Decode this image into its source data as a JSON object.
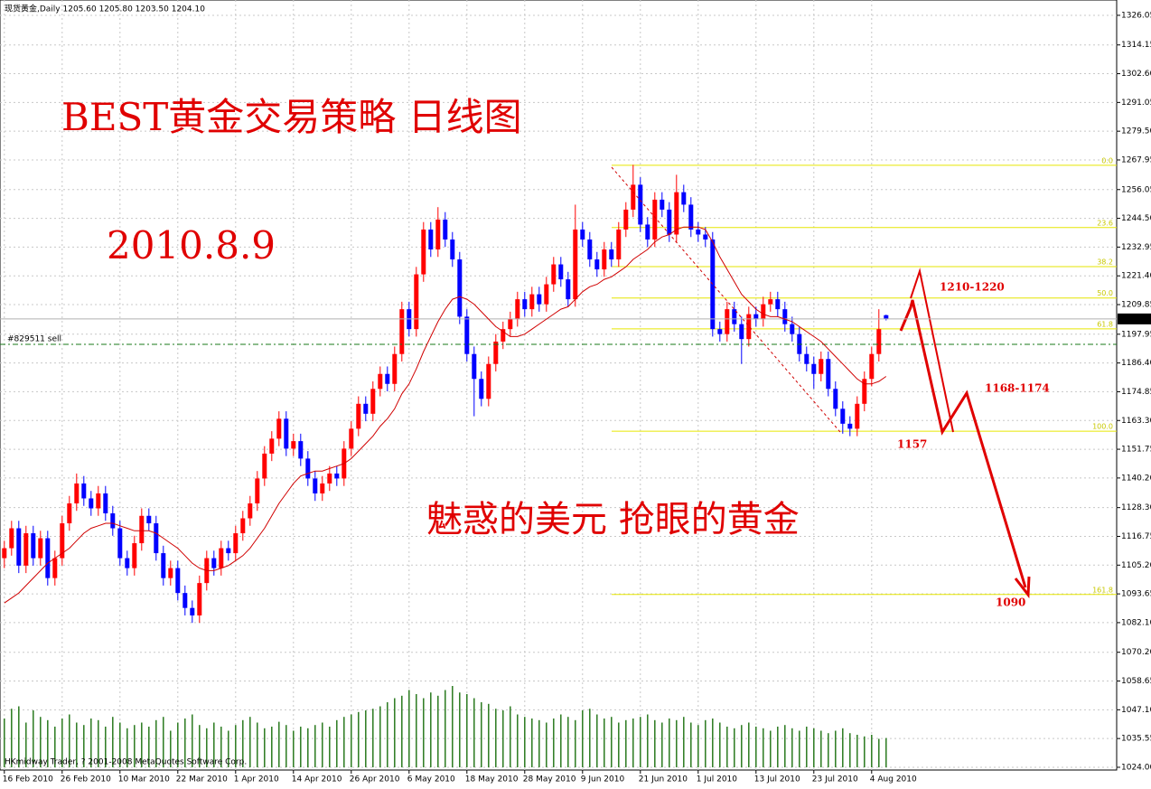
{
  "chart_data": {
    "type": "candlestick",
    "header": "现货黄金,Daily  1205.60 1205.80 1203.50 1204.10",
    "title": "BEST黄金交易策略  日线图",
    "date_note": "2010.8.9",
    "subtitle": "魅惑的美元 抢眼的黄金",
    "footer": "HKmidway Trader, ? 2001-2008 MetaQuotes Software Corp.",
    "target_labels": [
      "1210-1220",
      "1168-1174",
      "1157",
      "1090"
    ],
    "up_color": "#ff0000",
    "down_color": "#0000ff",
    "ma_color": "#d00000",
    "volume_color": "#2a7a1e",
    "fib_color": "#e6e600",
    "grid": true,
    "xlim": [
      -0.6,
      153.9
    ],
    "ylim": [
      1022.9,
      1332.2
    ],
    "xticks": [
      {
        "value": 0,
        "label": "16 Feb 2010"
      },
      {
        "value": 8,
        "label": "26 Feb 2010"
      },
      {
        "value": 16,
        "label": "10 Mar 2010"
      },
      {
        "value": 24,
        "label": "22 Mar 2010"
      },
      {
        "value": 32,
        "label": "1 Apr 2010"
      },
      {
        "value": 40,
        "label": "14 Apr 2010"
      },
      {
        "value": 48,
        "label": "26 Apr 2010"
      },
      {
        "value": 56,
        "label": "6 May 2010"
      },
      {
        "value": 64,
        "label": "18 May 2010"
      },
      {
        "value": 72,
        "label": "28 May 2010"
      },
      {
        "value": 80,
        "label": "9 Jun 2010"
      },
      {
        "value": 88,
        "label": "21 Jun 2010"
      },
      {
        "value": 96,
        "label": "1 Jul 2010"
      },
      {
        "value": 104,
        "label": "13 Jul 2010"
      },
      {
        "value": 112,
        "label": "23 Jul 2010"
      },
      {
        "value": 120,
        "label": "4 Aug 2010"
      }
    ],
    "yticks": [
      {
        "value": 1326.05,
        "label": "1326.05"
      },
      {
        "value": 1314.15,
        "label": "1314.15"
      },
      {
        "value": 1302.6,
        "label": "1302.60"
      },
      {
        "value": 1291.05,
        "label": "1291.05"
      },
      {
        "value": 1279.5,
        "label": "1279.50"
      },
      {
        "value": 1267.95,
        "label": "1267.95"
      },
      {
        "value": 1256.05,
        "label": "1256.05"
      },
      {
        "value": 1244.5,
        "label": "1244.50"
      },
      {
        "value": 1232.95,
        "label": "1232.95"
      },
      {
        "value": 1221.4,
        "label": "1221.40"
      },
      {
        "value": 1209.85,
        "label": "1209.85"
      },
      {
        "value": 1197.95,
        "label": "1197.95"
      },
      {
        "value": 1186.4,
        "label": "1186.40"
      },
      {
        "value": 1174.85,
        "label": "1174.85"
      },
      {
        "value": 1163.3,
        "label": "1163.30"
      },
      {
        "value": 1151.75,
        "label": "1151.75"
      },
      {
        "value": 1140.2,
        "label": "1140.20"
      },
      {
        "value": 1128.3,
        "label": "1128.30"
      },
      {
        "value": 1116.75,
        "label": "1116.75"
      },
      {
        "value": 1105.2,
        "label": "1105.20"
      },
      {
        "value": 1093.65,
        "label": "1093.65"
      },
      {
        "value": 1082.1,
        "label": "1082.10"
      },
      {
        "value": 1070.2,
        "label": "1070.20"
      },
      {
        "value": 1058.65,
        "label": "1058.65"
      },
      {
        "value": 1047.1,
        "label": "1047.10"
      },
      {
        "value": 1035.55,
        "label": "1035.55"
      },
      {
        "value": 1024,
        "label": "1024.00"
      }
    ],
    "last_price": {
      "value": 1204.1,
      "label": "1204.10"
    },
    "order_line": {
      "value": 1193.9,
      "label": "#829511 sell"
    },
    "fib_levels": [
      {
        "value": 1265.8,
        "label": "0.0"
      },
      {
        "value": 1240.8,
        "label": "23.6"
      },
      {
        "value": 1225.1,
        "label": "38.2"
      },
      {
        "value": 1212.5,
        "label": "50.0"
      },
      {
        "value": 1200.1,
        "label": "61.8"
      },
      {
        "value": 1159.0,
        "label": "100.0"
      },
      {
        "value": 1093.4,
        "label": "161.8"
      }
    ],
    "candles": [
      [
        1108,
        1115,
        1104,
        1112
      ],
      [
        1112,
        1123,
        1109,
        1120
      ],
      [
        1120,
        1123,
        1102,
        1105
      ],
      [
        1105,
        1121,
        1102,
        1118
      ],
      [
        1118,
        1121,
        1105,
        1108
      ],
      [
        1108,
        1119,
        1105,
        1116
      ],
      [
        1116,
        1119,
        1097,
        1100
      ],
      [
        1100,
        1111,
        1097,
        1108
      ],
      [
        1108,
        1125,
        1105,
        1122
      ],
      [
        1122,
        1133,
        1119,
        1130
      ],
      [
        1130,
        1142,
        1127,
        1138
      ],
      [
        1138,
        1141,
        1129,
        1132
      ],
      [
        1132,
        1135,
        1125,
        1128
      ],
      [
        1128,
        1137,
        1125,
        1134
      ],
      [
        1134,
        1137,
        1123,
        1126
      ],
      [
        1126,
        1129,
        1117,
        1120
      ],
      [
        1120,
        1123,
        1105,
        1108
      ],
      [
        1108,
        1111,
        1101,
        1104
      ],
      [
        1104,
        1117,
        1101,
        1114
      ],
      [
        1114,
        1128,
        1111,
        1125
      ],
      [
        1125,
        1128,
        1119,
        1122
      ],
      [
        1122,
        1125,
        1107,
        1110
      ],
      [
        1110,
        1113,
        1097,
        1100
      ],
      [
        1100,
        1107,
        1097,
        1104
      ],
      [
        1104,
        1107,
        1091,
        1094
      ],
      [
        1094,
        1097,
        1085,
        1088
      ],
      [
        1088,
        1091,
        1082,
        1085
      ],
      [
        1085,
        1101,
        1082,
        1098
      ],
      [
        1098,
        1111,
        1095,
        1108
      ],
      [
        1108,
        1111,
        1101,
        1104
      ],
      [
        1104,
        1115,
        1101,
        1112
      ],
      [
        1112,
        1115,
        1107,
        1110
      ],
      [
        1110,
        1121,
        1107,
        1118
      ],
      [
        1118,
        1127,
        1115,
        1124
      ],
      [
        1124,
        1133,
        1121,
        1130
      ],
      [
        1130,
        1143,
        1127,
        1140
      ],
      [
        1140,
        1153,
        1137,
        1150
      ],
      [
        1150,
        1159,
        1147,
        1156
      ],
      [
        1156,
        1167,
        1153,
        1164
      ],
      [
        1164,
        1167,
        1149,
        1152
      ],
      [
        1152,
        1158,
        1149,
        1155
      ],
      [
        1155,
        1158,
        1145,
        1148
      ],
      [
        1148,
        1151,
        1137,
        1140
      ],
      [
        1140,
        1143,
        1131,
        1134
      ],
      [
        1134,
        1141,
        1131,
        1138
      ],
      [
        1138,
        1145,
        1135,
        1142
      ],
      [
        1142,
        1145,
        1137,
        1140
      ],
      [
        1140,
        1155,
        1137,
        1152
      ],
      [
        1152,
        1163,
        1149,
        1160
      ],
      [
        1160,
        1173,
        1157,
        1170
      ],
      [
        1170,
        1173,
        1163,
        1166
      ],
      [
        1166,
        1179,
        1163,
        1176
      ],
      [
        1176,
        1185,
        1173,
        1182
      ],
      [
        1182,
        1185,
        1175,
        1178
      ],
      [
        1178,
        1193,
        1175,
        1190
      ],
      [
        1190,
        1211,
        1187,
        1208
      ],
      [
        1208,
        1211,
        1197,
        1200
      ],
      [
        1200,
        1225,
        1197,
        1222
      ],
      [
        1222,
        1243,
        1219,
        1240
      ],
      [
        1240,
        1243,
        1229,
        1232
      ],
      [
        1232,
        1249,
        1229,
        1244
      ],
      [
        1244,
        1247,
        1233,
        1236
      ],
      [
        1236,
        1239,
        1225,
        1228
      ],
      [
        1228,
        1231,
        1202,
        1205
      ],
      [
        1205,
        1208,
        1187,
        1190
      ],
      [
        1190,
        1193,
        1165,
        1180
      ],
      [
        1180,
        1183,
        1169,
        1172
      ],
      [
        1172,
        1189,
        1169,
        1186
      ],
      [
        1186,
        1198,
        1183,
        1195
      ],
      [
        1195,
        1203,
        1192,
        1200
      ],
      [
        1200,
        1207,
        1197,
        1204
      ],
      [
        1204,
        1215,
        1201,
        1212
      ],
      [
        1212,
        1215,
        1205,
        1208
      ],
      [
        1208,
        1217,
        1205,
        1214
      ],
      [
        1214,
        1217,
        1207,
        1210
      ],
      [
        1210,
        1221,
        1207,
        1218
      ],
      [
        1218,
        1229,
        1215,
        1226
      ],
      [
        1226,
        1229,
        1217,
        1220
      ],
      [
        1220,
        1223,
        1209,
        1212
      ],
      [
        1212,
        1250,
        1209,
        1240
      ],
      [
        1240,
        1243,
        1233,
        1236
      ],
      [
        1236,
        1239,
        1225,
        1228
      ],
      [
        1228,
        1231,
        1221,
        1224
      ],
      [
        1224,
        1235,
        1221,
        1232
      ],
      [
        1232,
        1235,
        1225,
        1228
      ],
      [
        1228,
        1243,
        1225,
        1240
      ],
      [
        1240,
        1251,
        1237,
        1248
      ],
      [
        1248,
        1266,
        1245,
        1258
      ],
      [
        1258,
        1261,
        1239,
        1242
      ],
      [
        1242,
        1245,
        1233,
        1236
      ],
      [
        1236,
        1255,
        1233,
        1252
      ],
      [
        1252,
        1255,
        1245,
        1248
      ],
      [
        1248,
        1251,
        1235,
        1238
      ],
      [
        1238,
        1262,
        1235,
        1255
      ],
      [
        1255,
        1258,
        1247,
        1250
      ],
      [
        1250,
        1253,
        1237,
        1240
      ],
      [
        1240,
        1243,
        1235,
        1238
      ],
      [
        1238,
        1241,
        1233,
        1236
      ],
      [
        1236,
        1239,
        1197,
        1200
      ],
      [
        1200,
        1203,
        1195,
        1198
      ],
      [
        1198,
        1211,
        1195,
        1208
      ],
      [
        1208,
        1211,
        1199,
        1202
      ],
      [
        1202,
        1205,
        1186,
        1196
      ],
      [
        1196,
        1209,
        1193,
        1206
      ],
      [
        1206,
        1209,
        1201,
        1204
      ],
      [
        1204,
        1213,
        1201,
        1210
      ],
      [
        1210,
        1215,
        1207,
        1212
      ],
      [
        1212,
        1215,
        1205,
        1208
      ],
      [
        1208,
        1211,
        1199,
        1202
      ],
      [
        1202,
        1205,
        1195,
        1198
      ],
      [
        1198,
        1201,
        1187,
        1190
      ],
      [
        1190,
        1193,
        1183,
        1186
      ],
      [
        1186,
        1189,
        1176,
        1182
      ],
      [
        1182,
        1191,
        1179,
        1188
      ],
      [
        1188,
        1191,
        1173,
        1176
      ],
      [
        1176,
        1179,
        1165,
        1168
      ],
      [
        1168,
        1171,
        1158,
        1162
      ],
      [
        1162,
        1165,
        1157,
        1160
      ],
      [
        1160,
        1173,
        1157,
        1170
      ],
      [
        1170,
        1183,
        1167,
        1180
      ],
      [
        1180,
        1193,
        1177,
        1190
      ],
      [
        1190,
        1208,
        1187,
        1200
      ],
      [
        1205.6,
        1205.8,
        1203.5,
        1204.1
      ]
    ],
    "ma": [
      1090,
      1092,
      1094,
      1097,
      1100,
      1103,
      1106,
      1108,
      1110,
      1112,
      1115,
      1118,
      1120,
      1121,
      1122,
      1122,
      1121,
      1120,
      1119,
      1119,
      1119,
      1118,
      1116,
      1114,
      1112,
      1109,
      1106,
      1104,
      1103,
      1103,
      1104,
      1105,
      1107,
      1109,
      1112,
      1116,
      1120,
      1125,
      1130,
      1134,
      1138,
      1141,
      1142,
      1143,
      1143,
      1144,
      1145,
      1146,
      1148,
      1151,
      1154,
      1157,
      1161,
      1164,
      1168,
      1174,
      1178,
      1184,
      1191,
      1197,
      1203,
      1208,
      1212,
      1213,
      1212,
      1210,
      1207,
      1204,
      1201,
      1199,
      1197,
      1197,
      1198,
      1200,
      1202,
      1204,
      1206,
      1208,
      1209,
      1212,
      1215,
      1217,
      1218,
      1220,
      1221,
      1223,
      1225,
      1228,
      1230,
      1232,
      1235,
      1237,
      1238,
      1240,
      1241,
      1241,
      1241,
      1240,
      1235,
      1229,
      1224,
      1219,
      1214,
      1211,
      1208,
      1206,
      1205,
      1205,
      1204,
      1203,
      1201,
      1199,
      1197,
      1195,
      1192,
      1189,
      1186,
      1183,
      1180,
      1178,
      1178,
      1179,
      1181
    ],
    "volume": [
      60,
      72,
      75,
      55,
      70,
      62,
      58,
      50,
      60,
      65,
      55,
      52,
      60,
      58,
      50,
      62,
      55,
      48,
      52,
      55,
      50,
      58,
      62,
      45,
      55,
      60,
      65,
      52,
      48,
      55,
      50,
      45,
      52,
      58,
      62,
      55,
      48,
      50,
      56,
      52,
      45,
      50,
      48,
      52,
      55,
      50,
      58,
      62,
      65,
      68,
      70,
      72,
      75,
      80,
      85,
      88,
      95,
      90,
      85,
      92,
      88,
      95,
      100,
      92,
      90,
      85,
      80,
      78,
      72,
      70,
      75,
      65,
      62,
      60,
      58,
      55,
      60,
      65,
      62,
      58,
      70,
      72,
      65,
      60,
      62,
      55,
      58,
      60,
      62,
      65,
      58,
      55,
      60,
      58,
      62,
      55,
      52,
      58,
      60,
      55,
      50,
      48,
      52,
      55,
      50,
      48,
      45,
      50,
      52,
      48,
      45,
      50,
      48,
      45,
      42,
      45,
      48,
      42,
      40,
      38,
      40,
      35,
      36
    ]
  }
}
